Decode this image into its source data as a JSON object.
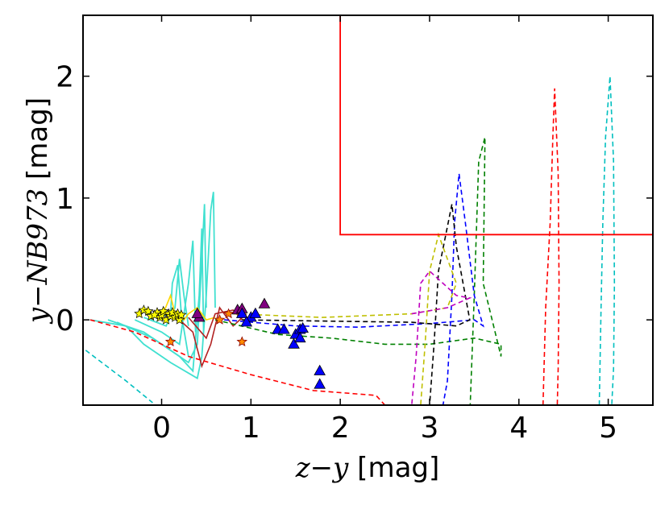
{
  "chart_data": {
    "type": "line",
    "xlabel_parts": [
      "z",
      "−",
      "y",
      " [mag]"
    ],
    "ylabel_parts": [
      "y",
      "−",
      "NB973",
      " [mag]"
    ],
    "xlim": [
      -0.88,
      5.5
    ],
    "ylim": [
      -0.7,
      2.5
    ],
    "xticks": [
      0,
      1,
      2,
      3,
      4,
      5
    ],
    "yticks": [
      0,
      1,
      2
    ],
    "xtick_labels": [
      "0",
      "1",
      "2",
      "3",
      "4",
      "5"
    ],
    "ytick_labels": [
      "0",
      "1",
      "2"
    ],
    "selection_box": {
      "color": "#ff0000",
      "points": [
        [
          2.0,
          2.5
        ],
        [
          2.0,
          0.7
        ],
        [
          5.5,
          0.7
        ]
      ]
    },
    "dashed_tracks": [
      {
        "color": "#00bfbf",
        "points": [
          [
            -0.85,
            -0.25
          ],
          [
            -0.4,
            -0.5
          ],
          [
            -0.1,
            -0.68
          ]
        ]
      },
      {
        "color": "#00bfbf",
        "points": [
          [
            4.9,
            -0.7
          ],
          [
            4.92,
            0.1
          ],
          [
            4.94,
            0.8
          ],
          [
            4.97,
            1.5
          ],
          [
            5.02,
            2.0
          ],
          [
            5.06,
            1.3
          ],
          [
            5.07,
            0.3
          ],
          [
            5.06,
            -0.4
          ],
          [
            5.04,
            -0.7
          ]
        ]
      },
      {
        "color": "#ff0000",
        "points": [
          [
            -0.8,
            0.0
          ],
          [
            -0.3,
            -0.1
          ],
          [
            0.3,
            -0.3
          ],
          [
            1.0,
            -0.45
          ],
          [
            1.7,
            -0.58
          ],
          [
            2.4,
            -0.62
          ],
          [
            2.5,
            -0.7
          ]
        ]
      },
      {
        "color": "#ff0000",
        "points": [
          [
            4.27,
            -0.7
          ],
          [
            4.3,
            0.1
          ],
          [
            4.35,
            0.8
          ],
          [
            4.38,
            1.5
          ],
          [
            4.4,
            1.9
          ],
          [
            4.44,
            1.2
          ],
          [
            4.45,
            0.3
          ],
          [
            4.44,
            -0.4
          ],
          [
            4.43,
            -0.7
          ]
        ]
      },
      {
        "color": "#008000",
        "points": [
          [
            0.6,
            0.0
          ],
          [
            1.3,
            -0.12
          ],
          [
            1.9,
            -0.15
          ],
          [
            2.5,
            -0.2
          ],
          [
            3.0,
            -0.2
          ],
          [
            3.5,
            -0.15
          ],
          [
            3.8,
            -0.2
          ],
          [
            3.8,
            -0.3
          ],
          [
            3.6,
            0.3
          ],
          [
            3.62,
            1.5
          ],
          [
            3.55,
            1.3
          ],
          [
            3.5,
            0.2
          ],
          [
            3.45,
            -0.8
          ]
        ]
      },
      {
        "color": "#0000ff",
        "points": [
          [
            0.7,
            0.0
          ],
          [
            1.5,
            -0.05
          ],
          [
            2.2,
            -0.06
          ],
          [
            3.0,
            -0.03
          ],
          [
            3.5,
            0.0
          ],
          [
            3.6,
            -0.05
          ],
          [
            3.5,
            0.2
          ],
          [
            3.4,
            0.8
          ],
          [
            3.33,
            1.2
          ],
          [
            3.28,
            0.8
          ],
          [
            3.25,
            0.2
          ],
          [
            3.2,
            -0.5
          ],
          [
            3.15,
            -0.7
          ]
        ]
      },
      {
        "color": "#000000",
        "points": [
          [
            0.9,
            0.0
          ],
          [
            1.8,
            -0.01
          ],
          [
            2.8,
            -0.02
          ],
          [
            3.3,
            -0.05
          ],
          [
            3.45,
            0.0
          ],
          [
            3.3,
            0.6
          ],
          [
            3.25,
            0.95
          ],
          [
            3.1,
            0.4
          ],
          [
            3.05,
            -0.2
          ],
          [
            3.0,
            -0.7
          ]
        ]
      },
      {
        "color": "#bfbf00",
        "points": [
          [
            0.8,
            0.05
          ],
          [
            1.8,
            0.02
          ],
          [
            2.8,
            0.05
          ],
          [
            3.2,
            0.1
          ],
          [
            3.3,
            0.3
          ],
          [
            3.1,
            0.7
          ],
          [
            3.0,
            0.4
          ],
          [
            2.95,
            -0.2
          ],
          [
            2.9,
            -0.7
          ]
        ]
      },
      {
        "color": "#bf00bf",
        "points": [
          [
            2.8,
            0.05
          ],
          [
            3.2,
            0.1
          ],
          [
            3.45,
            0.18
          ],
          [
            3.3,
            0.2
          ],
          [
            3.0,
            0.4
          ],
          [
            2.9,
            0.3
          ],
          [
            2.85,
            -0.3
          ],
          [
            2.8,
            -0.7
          ]
        ]
      }
    ],
    "brown_dwarf_tracks": [
      {
        "color": "#40e0d0",
        "points": [
          [
            -0.8,
            0.0
          ],
          [
            -0.4,
            -0.05
          ],
          [
            -0.2,
            -0.2
          ],
          [
            0.1,
            -0.35
          ],
          [
            0.4,
            -0.48
          ],
          [
            0.45,
            -0.3
          ],
          [
            0.5,
            0.2
          ],
          [
            0.55,
            0.9
          ],
          [
            0.58,
            1.05
          ],
          [
            0.6,
            0.1
          ]
        ]
      },
      {
        "color": "#40e0d0",
        "points": [
          [
            -0.6,
            0.0
          ],
          [
            -0.2,
            -0.1
          ],
          [
            0.1,
            -0.25
          ],
          [
            0.3,
            -0.35
          ],
          [
            0.4,
            -0.2
          ],
          [
            0.45,
            0.5
          ],
          [
            0.48,
            0.95
          ],
          [
            0.5,
            0.1
          ]
        ]
      },
      {
        "color": "#40e0d0",
        "points": [
          [
            -0.5,
            -0.02
          ],
          [
            -0.1,
            -0.15
          ],
          [
            0.2,
            -0.3
          ],
          [
            0.35,
            -0.42
          ],
          [
            0.42,
            0.2
          ],
          [
            0.45,
            0.75
          ],
          [
            0.47,
            -0.1
          ]
        ]
      },
      {
        "color": "#40e0d0",
        "points": [
          [
            -0.3,
            0.0
          ],
          [
            0.0,
            -0.1
          ],
          [
            0.2,
            -0.2
          ],
          [
            0.3,
            0.3
          ],
          [
            0.35,
            0.65
          ],
          [
            0.38,
            -0.1
          ]
        ]
      },
      {
        "color": "#40e0d0",
        "points": [
          [
            -0.2,
            0.02
          ],
          [
            0.05,
            -0.05
          ],
          [
            0.15,
            0.1
          ],
          [
            0.2,
            0.5
          ],
          [
            0.25,
            0.2
          ],
          [
            0.3,
            -0.05
          ]
        ]
      },
      {
        "color": "#40e0d0",
        "points": [
          [
            -0.1,
            0.02
          ],
          [
            0.1,
            0.05
          ],
          [
            0.12,
            0.3
          ],
          [
            0.18,
            0.45
          ],
          [
            0.22,
            0.05
          ],
          [
            0.3,
            -0.3
          ]
        ]
      }
    ],
    "model_tracks": [
      {
        "color": "#ffd700",
        "points": [
          [
            0.0,
            0.02
          ],
          [
            0.1,
            0.2
          ],
          [
            0.15,
            0.05
          ],
          [
            0.25,
            0.0
          ],
          [
            0.3,
            0.05
          ],
          [
            0.4,
            0.1
          ],
          [
            0.5,
            0.0
          ],
          [
            0.6,
            0.02
          ]
        ]
      },
      {
        "color": "#b22222",
        "points": [
          [
            0.2,
            0.0
          ],
          [
            0.35,
            -0.1
          ],
          [
            0.45,
            -0.38
          ],
          [
            0.55,
            -0.2
          ],
          [
            0.65,
            0.1
          ],
          [
            0.8,
            -0.05
          ],
          [
            0.95,
            0.05
          ]
        ]
      },
      {
        "color": "#b22222",
        "points": [
          [
            0.3,
            0.02
          ],
          [
            0.5,
            -0.15
          ],
          [
            0.6,
            0.05
          ],
          [
            0.8,
            0.08
          ],
          [
            0.9,
            0.0
          ]
        ]
      }
    ],
    "triangles_blue": {
      "color": "#0000ff",
      "points": [
        [
          0.9,
          0.05
        ],
        [
          1.0,
          0.02
        ],
        [
          1.05,
          0.05
        ],
        [
          0.95,
          -0.02
        ],
        [
          1.3,
          -0.08
        ],
        [
          1.37,
          -0.08
        ],
        [
          1.5,
          -0.12
        ],
        [
          1.55,
          -0.08
        ],
        [
          1.48,
          -0.2
        ],
        [
          1.58,
          -0.07
        ],
        [
          1.55,
          -0.15
        ],
        [
          1.77,
          -0.42
        ],
        [
          1.77,
          -0.53
        ]
      ]
    },
    "triangles_purple": {
      "color": "#800080",
      "points": [
        [
          0.85,
          0.08
        ],
        [
          0.9,
          0.09
        ],
        [
          1.15,
          0.13
        ],
        [
          0.42,
          0.02
        ],
        [
          0.4,
          0.05
        ]
      ]
    },
    "stars_yellow": {
      "color": "#ffff00",
      "points": [
        [
          -0.25,
          0.05
        ],
        [
          -0.2,
          0.08
        ],
        [
          -0.15,
          0.07
        ],
        [
          -0.12,
          0.03
        ],
        [
          -0.05,
          0.06
        ],
        [
          -0.02,
          0.02
        ],
        [
          0.0,
          0.04
        ],
        [
          0.02,
          0.07
        ],
        [
          0.05,
          0.0
        ],
        [
          0.08,
          0.05
        ],
        [
          0.1,
          0.03
        ],
        [
          0.12,
          0.06
        ],
        [
          -0.08,
          0.04
        ],
        [
          0.15,
          0.02
        ],
        [
          0.18,
          0.05
        ],
        [
          0.2,
          0.0
        ],
        [
          0.22,
          0.04
        ]
      ]
    },
    "stars_orange": {
      "color": "#ff8c00",
      "points": [
        [
          0.1,
          -0.18
        ],
        [
          0.65,
          0.0
        ],
        [
          0.9,
          -0.18
        ],
        [
          0.75,
          0.05
        ]
      ]
    }
  }
}
